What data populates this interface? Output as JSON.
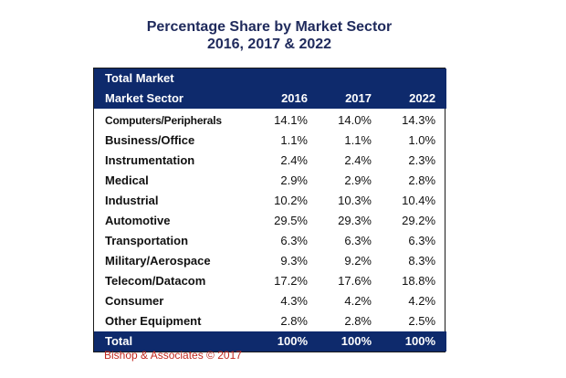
{
  "title": {
    "line1": "Percentage Share by Market Sector",
    "line2": "2016, 2017 & 2022"
  },
  "table": {
    "header_top": "Total Market",
    "header_sector": "Market Sector",
    "years": [
      "2016",
      "2017",
      "2022"
    ],
    "rows": [
      {
        "sector": "Computers/Peripherals",
        "values": [
          "14.1%",
          "14.0%",
          "14.3%"
        ]
      },
      {
        "sector": "Business/Office",
        "values": [
          "1.1%",
          "1.1%",
          "1.0%"
        ]
      },
      {
        "sector": "Instrumentation",
        "values": [
          "2.4%",
          "2.4%",
          "2.3%"
        ]
      },
      {
        "sector": "Medical",
        "values": [
          "2.9%",
          "2.9%",
          "2.8%"
        ]
      },
      {
        "sector": "Industrial",
        "values": [
          "10.2%",
          "10.3%",
          "10.4%"
        ]
      },
      {
        "sector": "Automotive",
        "values": [
          "29.5%",
          "29.3%",
          "29.2%"
        ]
      },
      {
        "sector": "Transportation",
        "values": [
          "6.3%",
          "6.3%",
          "6.3%"
        ]
      },
      {
        "sector": "Military/Aerospace",
        "values": [
          "9.3%",
          "9.2%",
          "8.3%"
        ]
      },
      {
        "sector": "Telecom/Datacom",
        "values": [
          "17.2%",
          "17.6%",
          "18.8%"
        ]
      },
      {
        "sector": "Consumer",
        "values": [
          "4.3%",
          "4.2%",
          "4.2%"
        ]
      },
      {
        "sector": "Other Equipment",
        "values": [
          "2.8%",
          "2.8%",
          "2.5%"
        ]
      }
    ],
    "total": {
      "label": "Total",
      "values": [
        "100%",
        "100%",
        "100%"
      ]
    }
  },
  "source": "Bishop & Associates © 2017",
  "colors": {
    "title": "#1f2a5c",
    "header_bg": "#0e2a6c",
    "source_text": "#c0281f"
  }
}
